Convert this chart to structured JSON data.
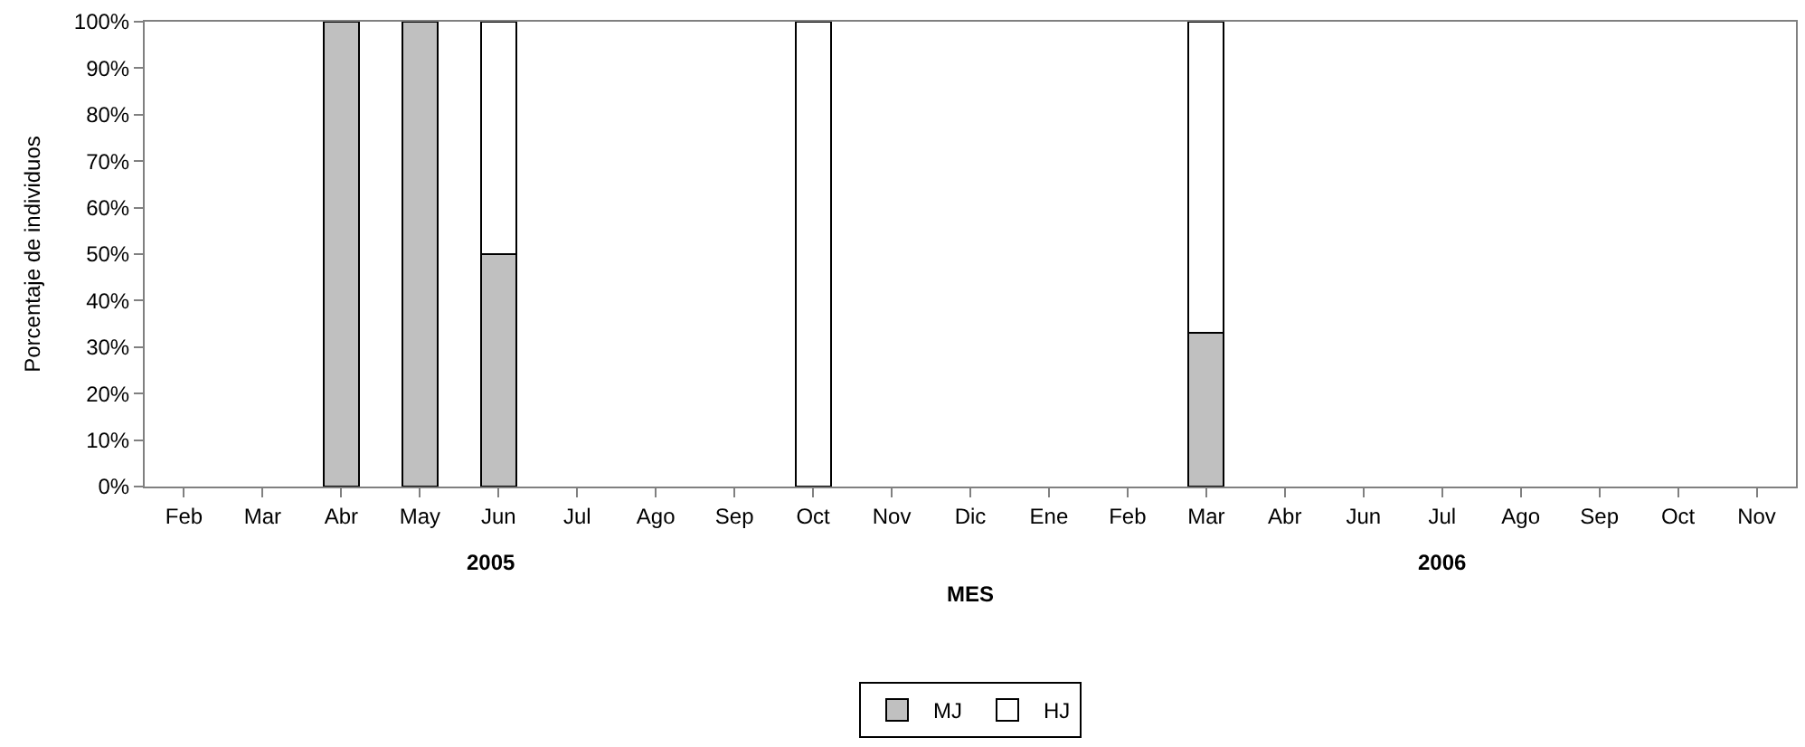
{
  "chart_data": {
    "type": "bar",
    "stacked": true,
    "categories": [
      "Feb",
      "Mar",
      "Abr",
      "May",
      "Jun",
      "Jul",
      "Ago",
      "Sep",
      "Oct",
      "Nov",
      "Dic",
      "Ene",
      "Feb",
      "Mar",
      "Abr",
      "Jun",
      "Jul",
      "Ago",
      "Sep",
      "Oct",
      "Nov"
    ],
    "series": [
      {
        "name": "MJ",
        "color": "#c0c0c0",
        "values": [
          null,
          null,
          100,
          100,
          50,
          null,
          null,
          null,
          null,
          null,
          null,
          null,
          null,
          33,
          null,
          null,
          null,
          null,
          null,
          null,
          null
        ]
      },
      {
        "name": "HJ",
        "color": "#ffffff",
        "values": [
          null,
          null,
          null,
          null,
          50,
          null,
          null,
          null,
          100,
          null,
          null,
          null,
          null,
          67,
          null,
          null,
          null,
          null,
          null,
          null,
          null
        ]
      }
    ],
    "xlabel": "MES",
    "ylabel": "Porcentaje de individuos",
    "annotations": [
      "2005",
      "2006"
    ],
    "ylim": [
      0,
      100
    ],
    "yticks": [
      {
        "value": 0,
        "label": "0%"
      },
      {
        "value": 10,
        "label": "10%"
      },
      {
        "value": 20,
        "label": "20%"
      },
      {
        "value": 30,
        "label": "30%"
      },
      {
        "value": 40,
        "label": "40%"
      },
      {
        "value": 50,
        "label": "50%"
      },
      {
        "value": 60,
        "label": "60%"
      },
      {
        "value": 70,
        "label": "70%"
      },
      {
        "value": 80,
        "label": "80%"
      },
      {
        "value": 90,
        "label": "90%"
      },
      {
        "value": 100,
        "label": "100%"
      }
    ],
    "legend": "bottom"
  }
}
